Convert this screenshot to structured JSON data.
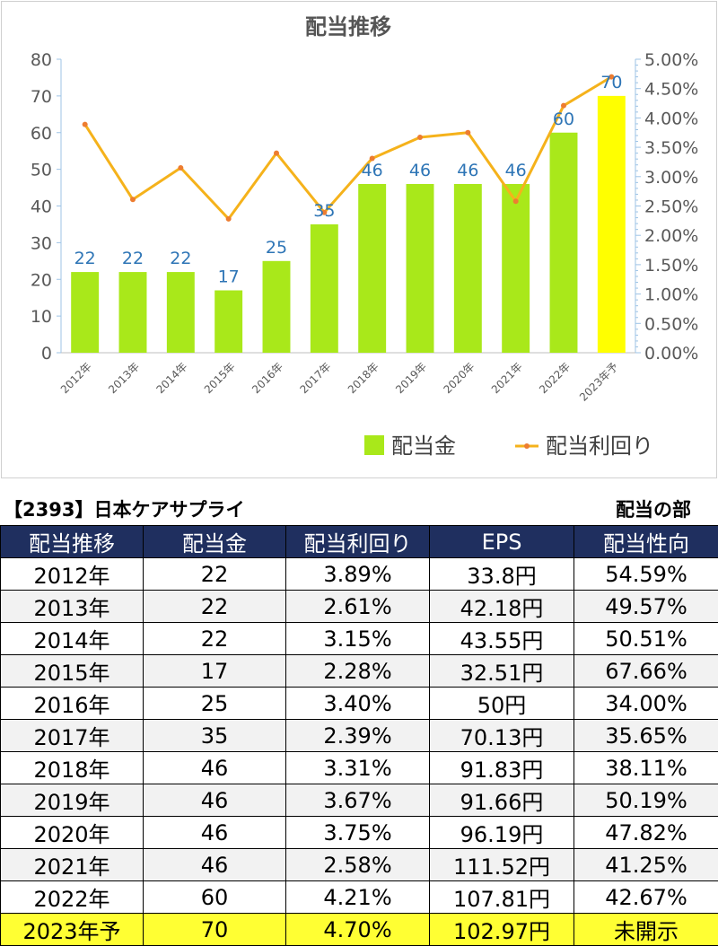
{
  "chart_data": {
    "type": "bar+line",
    "title": "配当推移",
    "categories": [
      "2012年",
      "2013年",
      "2014年",
      "2015年",
      "2016年",
      "2017年",
      "2018年",
      "2019年",
      "2020年",
      "2021年",
      "2022年",
      "2023年予"
    ],
    "series": [
      {
        "name": "配当金",
        "type": "bar",
        "axis": "left",
        "values": [
          22,
          22,
          22,
          17,
          25,
          35,
          46,
          46,
          46,
          46,
          60,
          70
        ],
        "color": "#a9e81a",
        "highlight_last_color": "#ffff00"
      },
      {
        "name": "配当利回り",
        "type": "line",
        "axis": "right",
        "values": [
          3.89,
          2.61,
          3.15,
          2.28,
          3.4,
          2.39,
          3.31,
          3.67,
          3.75,
          2.58,
          4.21,
          4.7
        ],
        "color": "#f5b21b"
      }
    ],
    "bar_labels": [
      "22",
      "22",
      "22",
      "17",
      "25",
      "35",
      "46",
      "46",
      "46",
      "46",
      "60",
      "70"
    ],
    "y_left": {
      "min": 0,
      "max": 80,
      "ticks": [
        "0",
        "10",
        "20",
        "30",
        "40",
        "50",
        "60",
        "70",
        "80"
      ]
    },
    "y_right": {
      "min": 0,
      "max": 5,
      "ticks": [
        "0.00%",
        "0.50%",
        "1.00%",
        "1.50%",
        "2.00%",
        "2.50%",
        "3.00%",
        "3.50%",
        "4.00%",
        "4.50%",
        "5.00%"
      ]
    },
    "legend_position": "bottom-right",
    "grid": false
  },
  "table": {
    "caption": "【2393】日本ケアサプライ",
    "section": "配当の部",
    "headers": [
      "配当推移",
      "配当金",
      "配当利回り",
      "EPS",
      "配当性向"
    ],
    "rows": [
      [
        "2012年",
        "22",
        "3.89%",
        "33.8円",
        "54.59%"
      ],
      [
        "2013年",
        "22",
        "2.61%",
        "42.18円",
        "49.57%"
      ],
      [
        "2014年",
        "22",
        "3.15%",
        "43.55円",
        "50.51%"
      ],
      [
        "2015年",
        "17",
        "2.28%",
        "32.51円",
        "67.66%"
      ],
      [
        "2016年",
        "25",
        "3.40%",
        "50円",
        "34.00%"
      ],
      [
        "2017年",
        "35",
        "2.39%",
        "70.13円",
        "35.65%"
      ],
      [
        "2018年",
        "46",
        "3.31%",
        "91.83円",
        "38.11%"
      ],
      [
        "2019年",
        "46",
        "3.67%",
        "91.66円",
        "50.19%"
      ],
      [
        "2020年",
        "46",
        "3.75%",
        "96.19円",
        "47.82%"
      ],
      [
        "2021年",
        "46",
        "2.58%",
        "111.52円",
        "41.25%"
      ],
      [
        "2022年",
        "60",
        "4.21%",
        "107.81円",
        "42.67%"
      ],
      [
        "2023年予",
        "70",
        "4.70%",
        "102.97円",
        "未開示"
      ]
    ],
    "header_color": "#1f2f5f",
    "highlight_color": "#ffff33"
  }
}
